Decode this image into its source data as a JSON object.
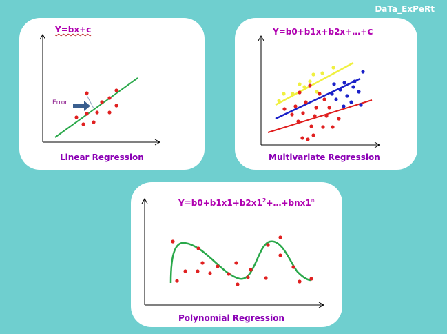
{
  "brand": "DaTa_ExPeRt",
  "panels": {
    "linear": {
      "formula": "Y=bx+c",
      "caption": "Linear Regression",
      "error_label": "Error"
    },
    "multi": {
      "formula_main": "Y=b0+b1x+b2x+…+",
      "formula_c": "c",
      "caption": "Multivariate Regression"
    },
    "poly": {
      "formula_main": "Y=b0+b1x1+b2x1",
      "formula_sup2": "2",
      "formula_rest": "+…+bnx1",
      "formula_supn": "n",
      "caption": "Polynomial Regression"
    }
  },
  "colors": {
    "background": "#6fcfcf",
    "panel": "#ffffff",
    "formula": "#b000b0",
    "caption": "#8b00b5",
    "fit_line": "#2aa84a",
    "point_red": "#e02020",
    "point_blue": "#1a20c8",
    "point_yellow": "#f0f040",
    "arrow": "#3a5f8f"
  }
}
